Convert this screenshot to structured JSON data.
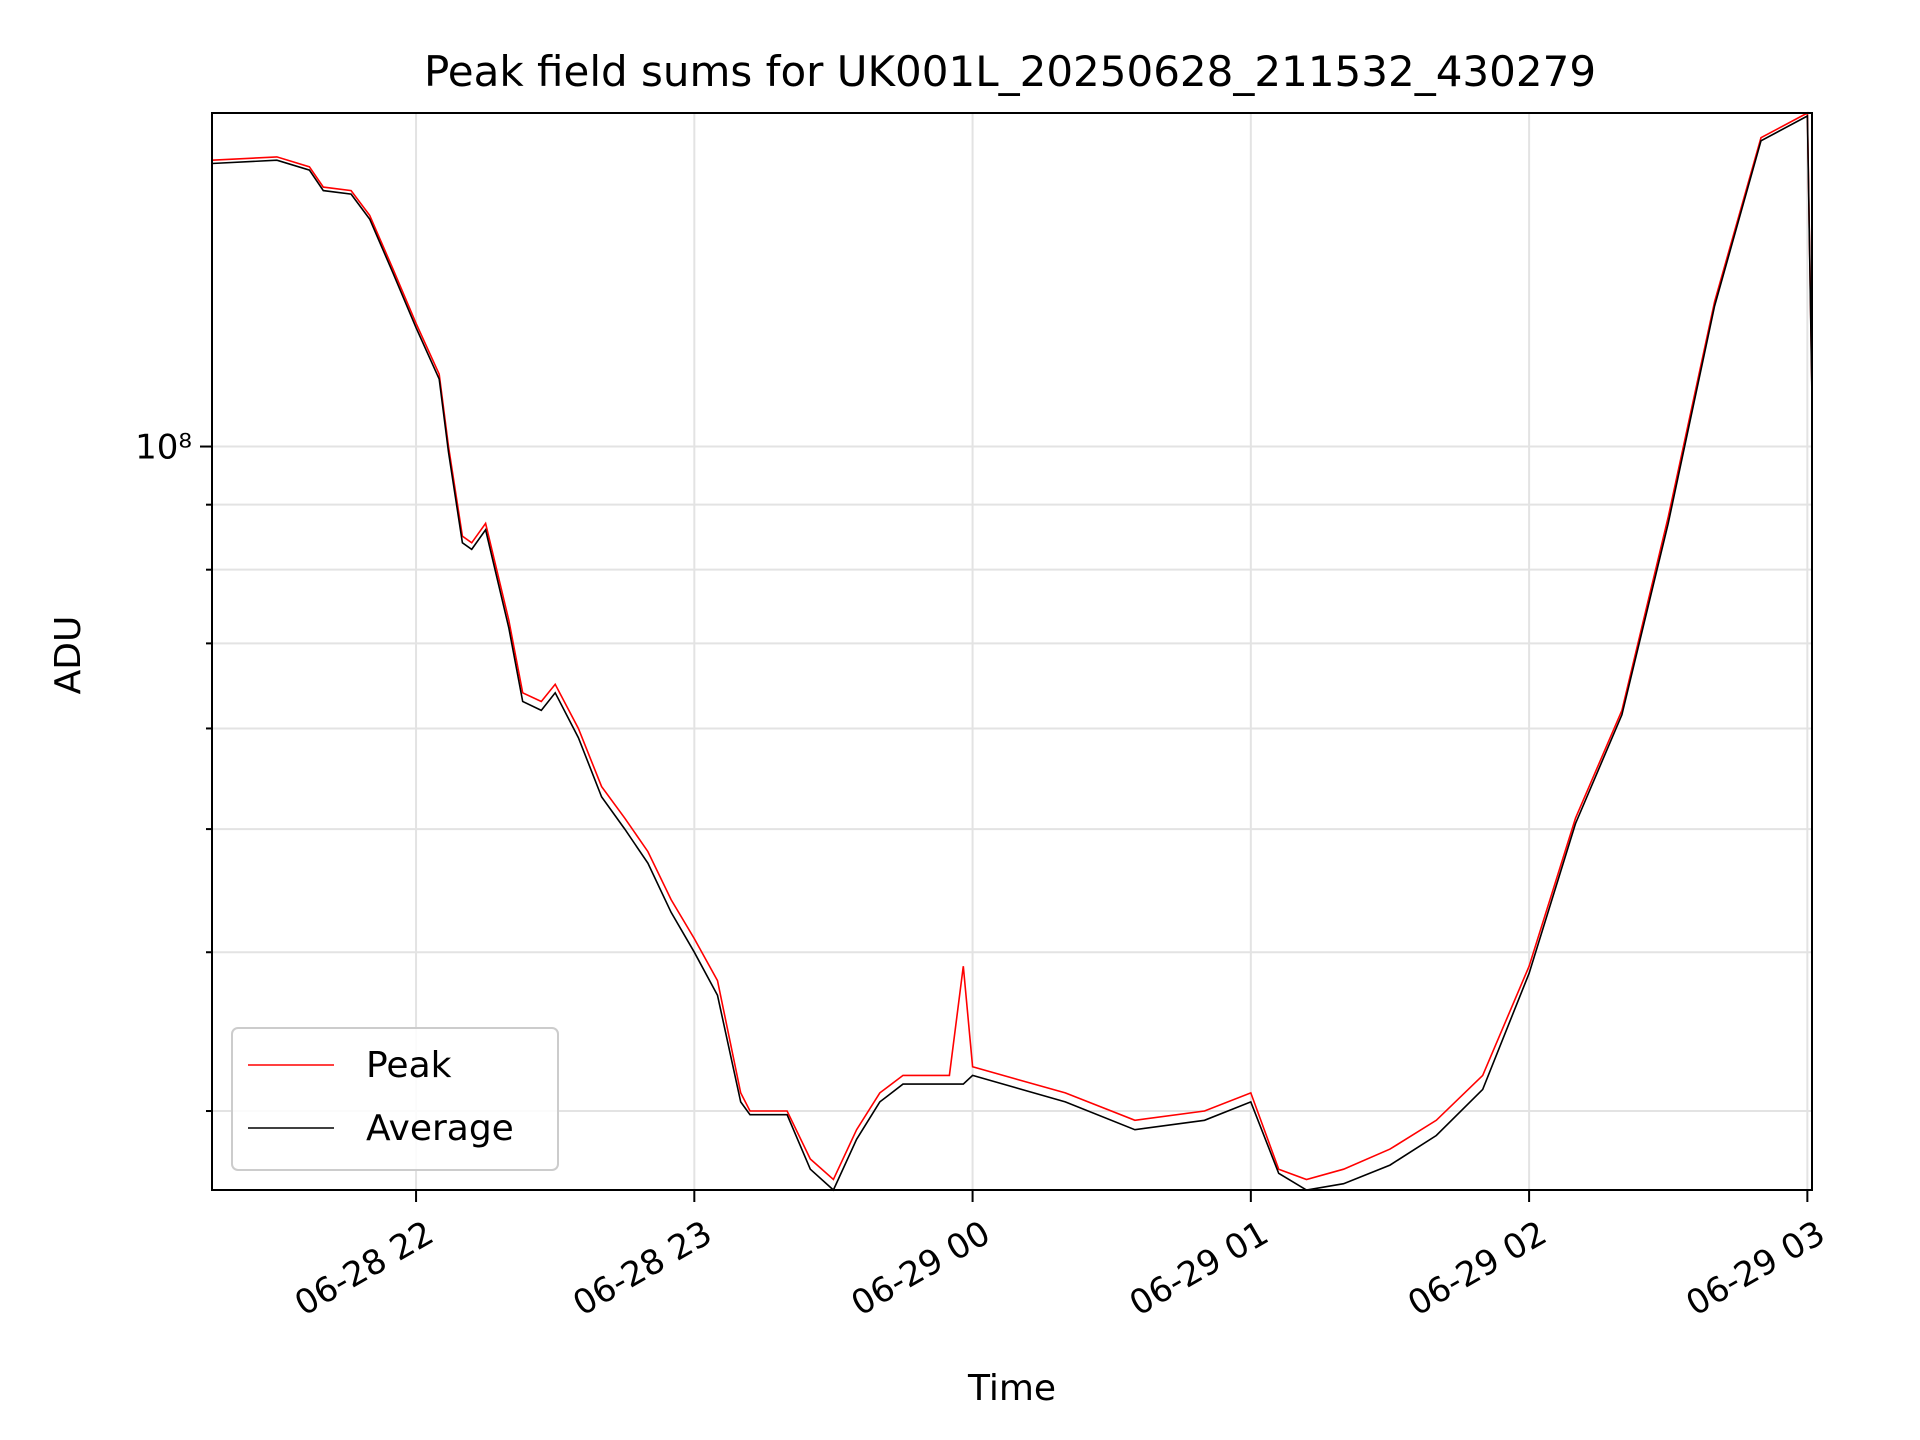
{
  "chart_data": {
    "type": "line",
    "title": "Peak field sums for UK001L_20250628_211532_430279",
    "xlabel": "Time",
    "ylabel": "ADU",
    "yscale": "log",
    "grid": true,
    "legend_position": "lower-left",
    "x_ticks": [
      {
        "t": "2025-06-28T22:00",
        "label": "06-28 22"
      },
      {
        "t": "2025-06-28T23:00",
        "label": "06-28 23"
      },
      {
        "t": "2025-06-29T00:00",
        "label": "06-29 00"
      },
      {
        "t": "2025-06-29T01:00",
        "label": "06-29 01"
      },
      {
        "t": "2025-06-29T02:00",
        "label": "06-29 02"
      },
      {
        "t": "2025-06-29T03:00",
        "label": "06-29 03"
      }
    ],
    "xlim": [
      "2025-06-28T21:16",
      "2025-06-29T03:01"
    ],
    "ylim": [
      26000000,
      183000000
    ],
    "y_tick_labels": [
      {
        "value": 100000000,
        "label": "10⁸"
      }
    ],
    "series": [
      {
        "name": "Peak",
        "color": "#ff0000",
        "x": [
          "2025-06-28T21:16",
          "2025-06-28T21:30",
          "2025-06-28T21:37",
          "2025-06-28T21:40",
          "2025-06-28T21:46",
          "2025-06-28T21:50",
          "2025-06-28T21:55",
          "2025-06-28T22:00",
          "2025-06-28T22:05",
          "2025-06-28T22:07",
          "2025-06-28T22:10",
          "2025-06-28T22:12",
          "2025-06-28T22:15",
          "2025-06-28T22:20",
          "2025-06-28T22:23",
          "2025-06-28T22:27",
          "2025-06-28T22:30",
          "2025-06-28T22:35",
          "2025-06-28T22:40",
          "2025-06-28T22:45",
          "2025-06-28T22:50",
          "2025-06-28T22:55",
          "2025-06-28T23:00",
          "2025-06-28T23:05",
          "2025-06-28T23:10",
          "2025-06-28T23:12",
          "2025-06-28T23:20",
          "2025-06-28T23:25",
          "2025-06-28T23:30",
          "2025-06-28T23:35",
          "2025-06-28T23:40",
          "2025-06-28T23:45",
          "2025-06-28T23:55",
          "2025-06-28T23:58",
          "2025-06-29T00:00",
          "2025-06-29T00:20",
          "2025-06-29T00:35",
          "2025-06-29T00:50",
          "2025-06-29T01:00",
          "2025-06-29T01:06",
          "2025-06-29T01:12",
          "2025-06-29T01:20",
          "2025-06-29T01:30",
          "2025-06-29T01:40",
          "2025-06-29T01:50",
          "2025-06-29T02:00",
          "2025-06-29T02:10",
          "2025-06-29T02:20",
          "2025-06-29T02:30",
          "2025-06-29T02:40",
          "2025-06-29T02:50",
          "2025-06-29T03:00",
          "2025-06-29T03:01"
        ],
        "values": [
          168000000,
          169000000,
          166000000,
          160000000,
          159000000,
          152000000,
          138000000,
          125000000,
          114000000,
          100000000,
          85000000,
          84000000,
          87000000,
          73000000,
          64000000,
          63000000,
          65000000,
          60000000,
          54000000,
          51000000,
          48000000,
          44000000,
          41000000,
          38000000,
          31000000,
          30000000,
          30000000,
          27500000,
          26500000,
          29000000,
          31000000,
          32000000,
          32000000,
          39000000,
          32500000,
          31000000,
          29500000,
          30000000,
          31000000,
          27000000,
          26500000,
          27000000,
          28000000,
          29500000,
          32000000,
          39000000,
          51000000,
          62000000,
          88000000,
          130000000,
          175000000,
          183000000,
          110000000
        ]
      },
      {
        "name": "Average",
        "color": "#000000",
        "x": [
          "2025-06-28T21:16",
          "2025-06-28T21:30",
          "2025-06-28T21:37",
          "2025-06-28T21:40",
          "2025-06-28T21:46",
          "2025-06-28T21:50",
          "2025-06-28T21:55",
          "2025-06-28T22:00",
          "2025-06-28T22:05",
          "2025-06-28T22:07",
          "2025-06-28T22:10",
          "2025-06-28T22:12",
          "2025-06-28T22:15",
          "2025-06-28T22:20",
          "2025-06-28T22:23",
          "2025-06-28T22:27",
          "2025-06-28T22:30",
          "2025-06-28T22:35",
          "2025-06-28T22:40",
          "2025-06-28T22:45",
          "2025-06-28T22:50",
          "2025-06-28T22:55",
          "2025-06-28T23:00",
          "2025-06-28T23:05",
          "2025-06-28T23:10",
          "2025-06-28T23:12",
          "2025-06-28T23:20",
          "2025-06-28T23:25",
          "2025-06-28T23:30",
          "2025-06-28T23:35",
          "2025-06-28T23:40",
          "2025-06-28T23:45",
          "2025-06-28T23:55",
          "2025-06-28T23:58",
          "2025-06-29T00:00",
          "2025-06-29T00:20",
          "2025-06-29T00:35",
          "2025-06-29T00:50",
          "2025-06-29T01:00",
          "2025-06-29T01:06",
          "2025-06-29T01:12",
          "2025-06-29T01:20",
          "2025-06-29T01:30",
          "2025-06-29T01:40",
          "2025-06-29T01:50",
          "2025-06-29T02:00",
          "2025-06-29T02:10",
          "2025-06-29T02:20",
          "2025-06-29T02:30",
          "2025-06-29T02:40",
          "2025-06-29T02:50",
          "2025-06-29T03:00",
          "2025-06-29T03:01"
        ],
        "values": [
          167000000,
          168000000,
          165000000,
          159000000,
          158000000,
          151000000,
          137000000,
          124000000,
          113000000,
          99000000,
          84000000,
          83000000,
          86000000,
          72000000,
          63000000,
          62000000,
          64000000,
          59000000,
          53000000,
          50000000,
          47000000,
          43000000,
          40000000,
          37000000,
          30500000,
          29800000,
          29800000,
          27000000,
          26000000,
          28500000,
          30500000,
          31500000,
          31500000,
          31500000,
          32000000,
          30500000,
          29000000,
          29500000,
          30500000,
          26800000,
          26000000,
          26300000,
          27200000,
          28700000,
          31200000,
          38500000,
          50500000,
          61500000,
          87000000,
          129000000,
          174000000,
          182000000,
          109000000
        ]
      }
    ]
  }
}
